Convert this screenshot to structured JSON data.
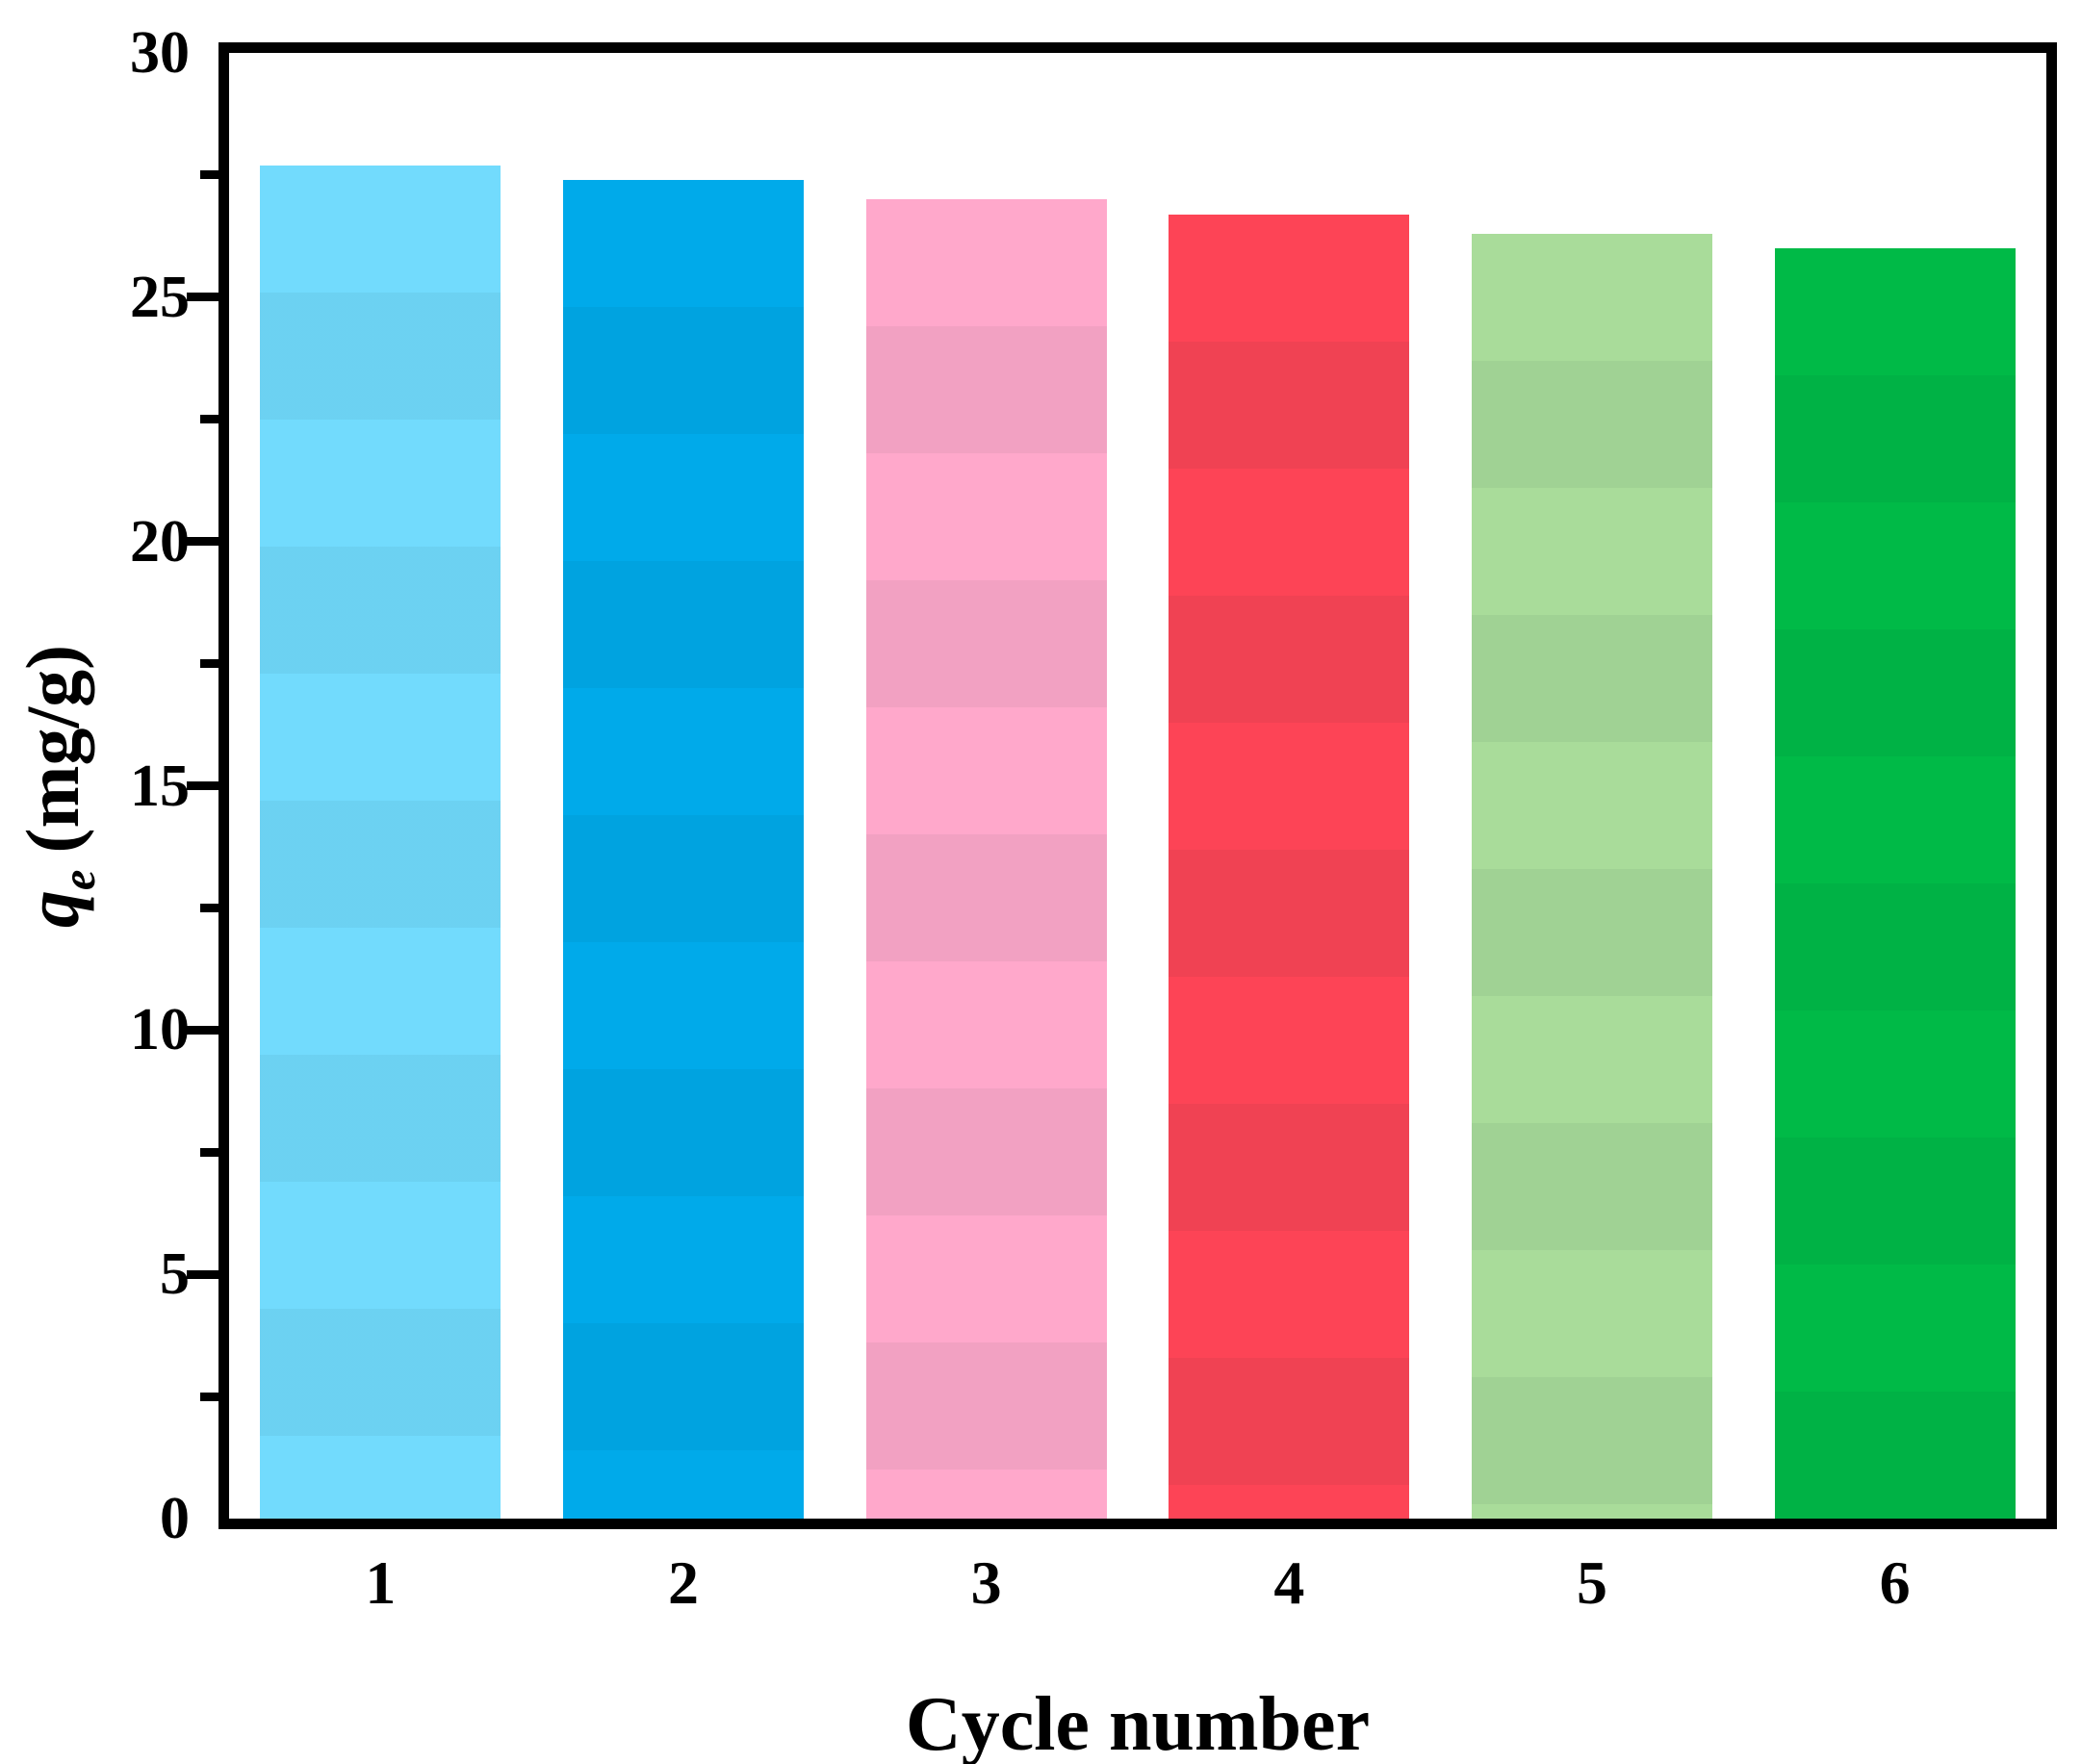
{
  "figure": {
    "background": "#ffffff",
    "axis_color": "#000000",
    "y_axis": {
      "title": {
        "variable": "q",
        "subscript": "e",
        "unit": "(mg/g)"
      },
      "major_tick_labels": [
        "0",
        "5",
        "10",
        "15",
        "20",
        "25",
        "30"
      ]
    },
    "x_axis": {
      "title": "Cycle number",
      "tick_labels": [
        "1",
        "2",
        "3",
        "4",
        "5",
        "6"
      ]
    }
  },
  "chart_data": {
    "type": "bar",
    "title": "",
    "xlabel": "Cycle number",
    "ylabel": "qe (mg/g)",
    "categories": [
      "1",
      "2",
      "3",
      "4",
      "5",
      "6"
    ],
    "values": [
      27.7,
      27.4,
      27.0,
      26.7,
      26.3,
      26.0
    ],
    "bar_colors": [
      "#72DBFD",
      "#00AAEA",
      "#FFA8CB",
      "#FD4456",
      "#A9DC9A",
      "#00BA47"
    ],
    "ylim": [
      0,
      30
    ],
    "ytick_major_step": 5,
    "ytick_minor_step": 2.5,
    "tick_direction": "out",
    "ticks_on": "left-only",
    "grid": false,
    "legend": "none",
    "frame": "full-box"
  }
}
